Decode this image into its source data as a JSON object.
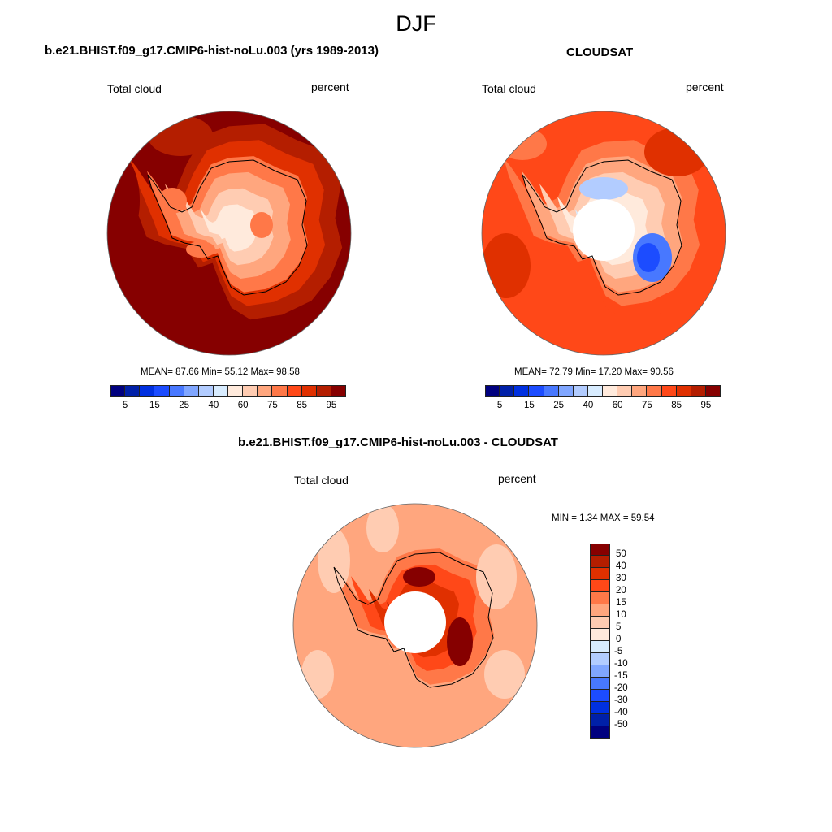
{
  "figure": {
    "title": "DJF"
  },
  "panels": [
    {
      "title": "b.e21.BHIST.f09_g17.CMIP6-hist-noLu.003 (yrs 1989-2013)",
      "left_label": "Total cloud",
      "right_label": "percent",
      "stats": "MEAN=  87.66  Min=  55.12  Max=  98.58"
    },
    {
      "title": "CLOUDSAT",
      "left_label": "Total cloud",
      "right_label": "percent",
      "stats": "MEAN=  72.79  Min=  17.20  Max=  90.56"
    },
    {
      "title": "b.e21.BHIST.f09_g17.CMIP6-hist-noLu.003 - CLOUDSAT",
      "left_label": "Total cloud",
      "right_label": "percent",
      "stats": "MIN =   1.34 MAX =  59.54"
    }
  ],
  "colorbar_abs": {
    "labels": [
      "5",
      "15",
      "25",
      "40",
      "60",
      "75",
      "85",
      "95"
    ]
  },
  "colorbar_diff": {
    "labels": [
      "50",
      "40",
      "30",
      "20",
      "15",
      "10",
      "5",
      "0",
      "-5",
      "-10",
      "-15",
      "-20",
      "-30",
      "-40",
      "-50"
    ]
  },
  "colors": [
    "#00007f",
    "#0020a8",
    "#0030e0",
    "#1c4cff",
    "#4878ff",
    "#80a6ff",
    "#b2ccff",
    "#d8ecff",
    "#ffeadc",
    "#ffccb2",
    "#ffa67e",
    "#ff7848",
    "#ff4818",
    "#e03000",
    "#b41e00",
    "#860000"
  ]
}
